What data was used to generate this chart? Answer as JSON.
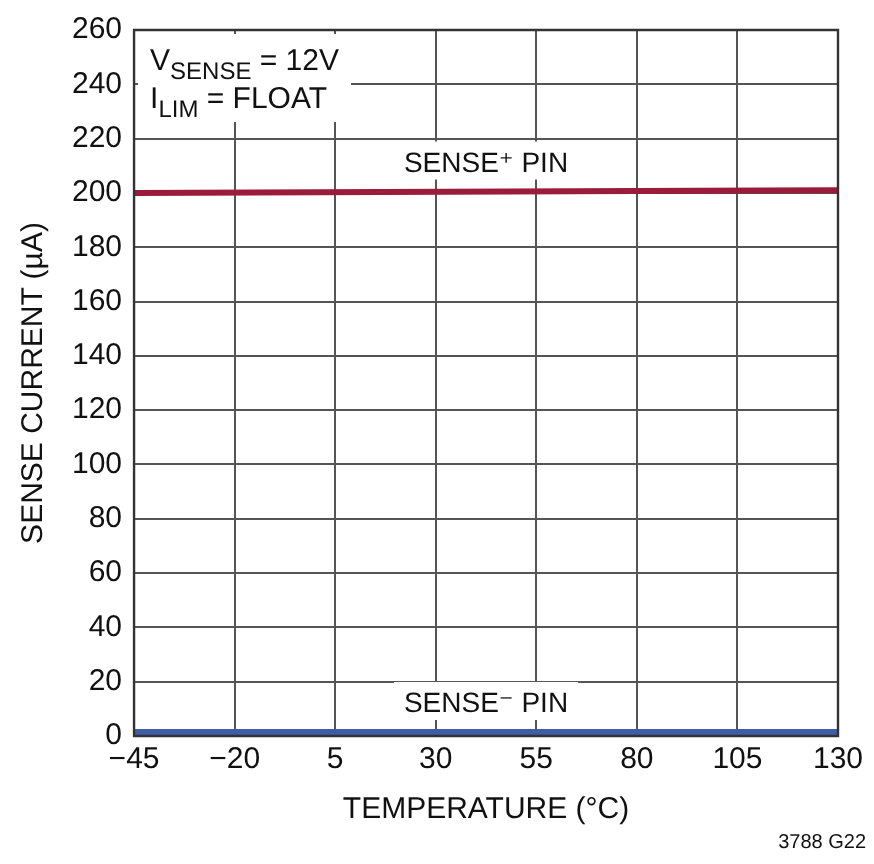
{
  "chart_data": {
    "type": "line",
    "xlabel": "TEMPERATURE (°C)",
    "ylabel": "SENSE CURRENT (µA)",
    "x": [
      -45,
      130
    ],
    "series": [
      {
        "name": "SENSE⁺ PIN",
        "color": "#9b1b3a",
        "values": [
          200,
          201
        ]
      },
      {
        "name": "SENSE⁻ PIN",
        "color": "#3e5da8",
        "values": [
          1.5,
          1.5
        ]
      }
    ],
    "xlim": [
      -45,
      130
    ],
    "xticks": [
      {
        "value": -45,
        "label": "−45"
      },
      {
        "value": -20,
        "label": "−20"
      },
      5,
      30,
      55,
      80,
      105,
      130
    ],
    "ylim": [
      0,
      260
    ],
    "yticks": [
      0,
      20,
      40,
      60,
      80,
      100,
      120,
      140,
      160,
      180,
      200,
      220,
      240,
      260
    ],
    "grid": true,
    "legend": false,
    "marker": "none",
    "line_style": "solid",
    "annotations": [
      "V$_{SENSE}$ = 12V",
      "I$_{LIM}$ = FLOAT",
      "3788 G22"
    ]
  }
}
